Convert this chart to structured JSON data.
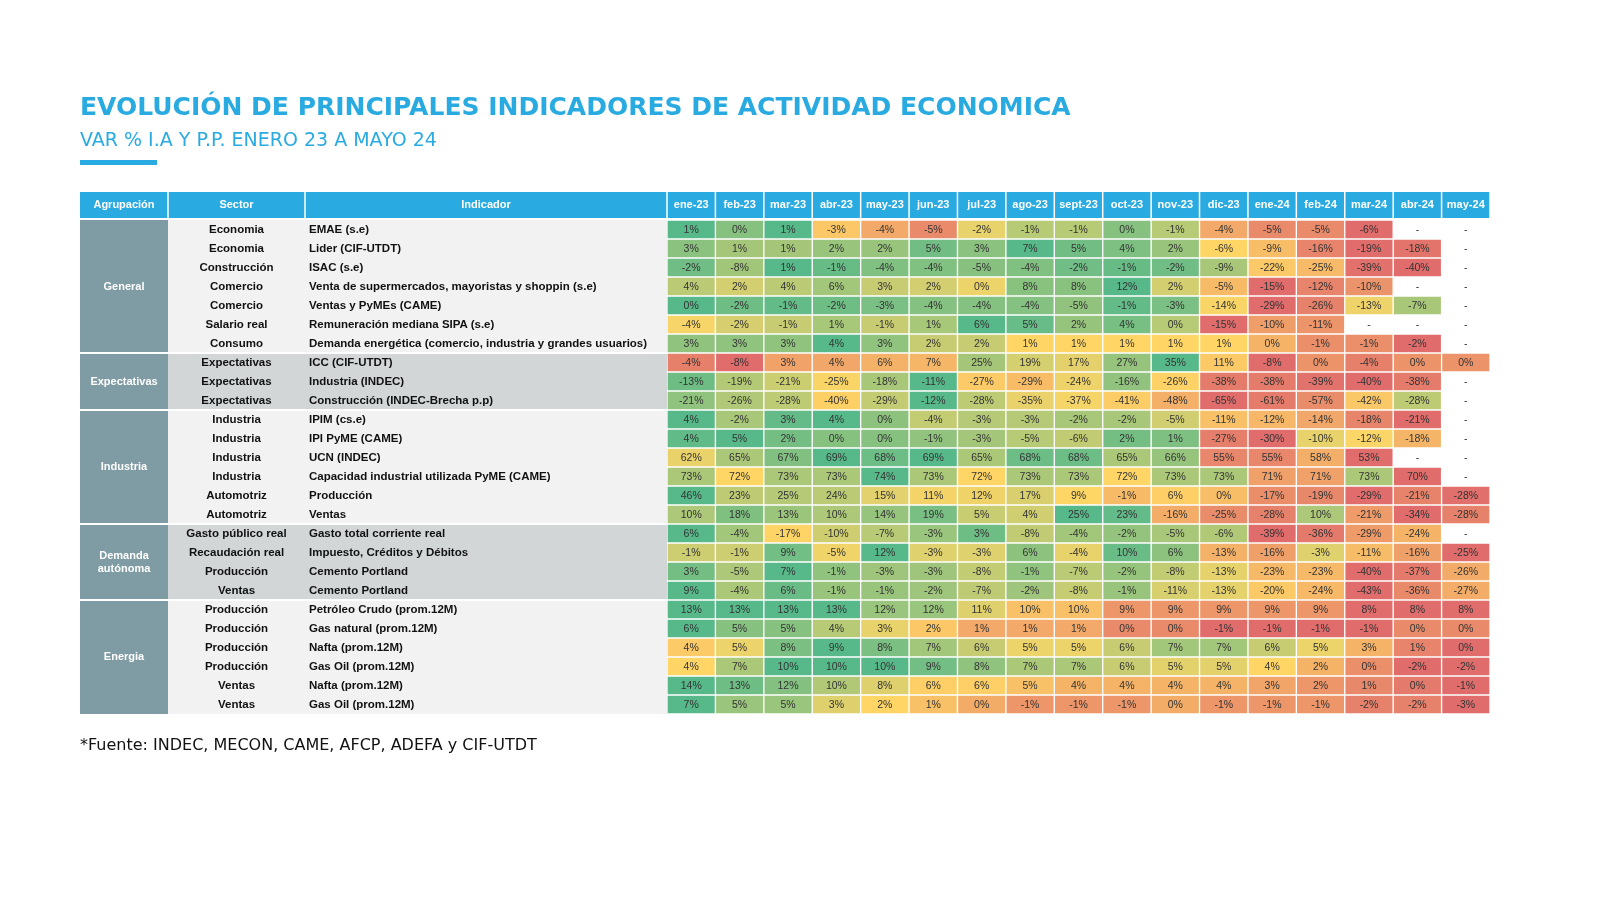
{
  "chart_data": {
    "type": "heatmap",
    "title": "EVOLUCIÓN DE PRINCIPALES INDICADORES DE ACTIVIDAD ECONOMICA",
    "subtitle": "VAR % I.A Y P.P. ENERO 23 A MAYO 24",
    "ylabel": "Indicador",
    "categories": [
      "ene-23",
      "feb-23",
      "mar-23",
      "abr-23",
      "may-23",
      "jun-23",
      "jul-23",
      "ago-23",
      "sept-23",
      "oct-23",
      "nov-23",
      "dic-23",
      "ene-24",
      "feb-24",
      "mar-24",
      "abr-24",
      "may-24"
    ],
    "y_categories": [
      "EMAE (s.e)",
      "Lider (CIF-UTDT)",
      "ISAC (s.e)",
      "Venta de supermercados, mayoristas y shoppin (s.e)",
      "Ventas y PyMEs (CAME)",
      "Remuneración mediana SIPA (s.e)",
      "Demanda energética (comercio, industria y grandes usuarios)",
      "ICC (CIF-UTDT)",
      "Industria (INDEC)",
      "Construcción (INDEC-Brecha p.p)",
      "IPIM (cs.e)",
      "IPI PyME (CAME)",
      "UCN (INDEC)",
      "Capacidad industrial utilizada PyME (CAME)",
      "Producción",
      "Ventas",
      "Gasto total corriente real",
      "Impuesto, Créditos y Débitos",
      "Cemento Portland",
      "Cemento Portland",
      "Petróleo Crudo (prom.12M)",
      "Gas natural (prom.12M)",
      "Nafta (prom.12M)",
      "Gas Oil (prom.12M)",
      "Nafta (prom.12M)",
      "Gas Oil (prom.12M)"
    ],
    "y2_categories": [
      "Economia",
      "Economia",
      "Construcción",
      "Comercio",
      "Comercio",
      "Salario real",
      "Consumo",
      "Expectativas",
      "Expectativas",
      "Expectativas",
      "Industria",
      "Industria",
      "Industria",
      "Industria",
      "Automotriz",
      "Automotriz",
      "Gasto público real",
      "Recaudación real",
      "Producción",
      "Ventas",
      "Producción",
      "Producción",
      "Producción",
      "Producción",
      "Ventas",
      "Ventas"
    ],
    "cells": [
      [
        1,
        0,
        1,
        -3,
        -4,
        -5,
        -2,
        -1,
        -1,
        0,
        -1,
        -4,
        -5,
        -5,
        -6,
        null,
        null
      ],
      [
        3,
        1,
        1,
        2,
        2,
        5,
        3,
        7,
        5,
        4,
        2,
        -6,
        -9,
        -16,
        -19,
        -18,
        null
      ],
      [
        -2,
        -8,
        1,
        -1,
        -4,
        -4,
        -5,
        -4,
        -2,
        -1,
        -2,
        -9,
        -22,
        -25,
        -39,
        -40,
        null
      ],
      [
        4,
        2,
        4,
        6,
        3,
        2,
        0,
        8,
        8,
        12,
        2,
        -5,
        -15,
        -12,
        -10,
        null,
        null
      ],
      [
        0,
        -2,
        -1,
        -2,
        -3,
        -4,
        -4,
        -4,
        -5,
        -1,
        -3,
        -14,
        -29,
        -26,
        -13,
        -7,
        null
      ],
      [
        -4,
        -2,
        -1,
        1,
        -1,
        1,
        6,
        5,
        2,
        4,
        0,
        -15,
        -10,
        -11,
        null,
        null,
        null
      ],
      [
        3,
        3,
        3,
        4,
        3,
        2,
        2,
        1,
        1,
        1,
        1,
        1,
        0,
        -1,
        -1,
        -2,
        null
      ],
      [
        -4,
        -8,
        3,
        4,
        6,
        7,
        25,
        19,
        17,
        27,
        35,
        11,
        -8,
        0,
        -4,
        0,
        0
      ],
      [
        -13,
        -19,
        -21,
        -25,
        -18,
        -11,
        -27,
        -29,
        -24,
        -16,
        -26,
        -38,
        -38,
        -39,
        -40,
        -38,
        null
      ],
      [
        -21,
        -26,
        -28,
        -40,
        -29,
        -12,
        -28,
        -35,
        -37,
        -41,
        -48,
        -65,
        -61,
        -57,
        -42,
        -28,
        null
      ],
      [
        4,
        -2,
        3,
        4,
        0,
        -4,
        -3,
        -3,
        -2,
        -2,
        -5,
        -11,
        -12,
        -14,
        -18,
        -21,
        null
      ],
      [
        4,
        5,
        2,
        0,
        0,
        -1,
        -3,
        -5,
        -6,
        2,
        1,
        -27,
        -30,
        -10,
        -12,
        -18,
        null
      ],
      [
        62,
        65,
        67,
        69,
        68,
        69,
        65,
        68,
        68,
        65,
        66,
        55,
        55,
        58,
        53,
        null,
        null
      ],
      [
        73,
        72,
        73,
        73,
        74,
        73,
        72,
        73,
        73,
        72,
        73,
        73,
        71,
        71,
        73,
        70,
        null
      ],
      [
        46,
        23,
        25,
        24,
        15,
        11,
        12,
        17,
        9,
        -1,
        6,
        0,
        -17,
        -19,
        -29,
        -21,
        -28
      ],
      [
        10,
        18,
        13,
        10,
        14,
        19,
        5,
        4,
        25,
        23,
        -16,
        -25,
        -28,
        10,
        -21,
        -34,
        -28
      ],
      [
        6,
        -4,
        -17,
        -10,
        -7,
        -3,
        3,
        -8,
        -4,
        -2,
        -5,
        -6,
        -39,
        -36,
        -29,
        -24,
        null
      ],
      [
        -1,
        -1,
        9,
        -5,
        12,
        -3,
        -3,
        6,
        -4,
        10,
        6,
        -13,
        -16,
        -3,
        -11,
        -16,
        -25
      ],
      [
        3,
        -5,
        7,
        -1,
        -3,
        -3,
        -8,
        -1,
        -7,
        -2,
        -8,
        -13,
        -23,
        -23,
        -40,
        -37,
        -26
      ],
      [
        9,
        -4,
        6,
        -1,
        -1,
        -2,
        -7,
        -2,
        -8,
        -1,
        -11,
        -13,
        -20,
        -24,
        -43,
        -36,
        -27
      ],
      [
        13,
        13,
        13,
        13,
        12,
        12,
        11,
        10,
        10,
        9,
        9,
        9,
        9,
        9,
        8,
        8,
        8
      ],
      [
        6,
        5,
        5,
        4,
        3,
        2,
        1,
        1,
        1,
        0,
        0,
        -1,
        -1,
        -1,
        -1,
        0,
        0
      ],
      [
        4,
        5,
        8,
        9,
        8,
        7,
        6,
        5,
        5,
        6,
        7,
        7,
        6,
        5,
        3,
        1,
        0
      ],
      [
        4,
        7,
        10,
        10,
        10,
        9,
        8,
        7,
        7,
        6,
        5,
        5,
        4,
        2,
        0,
        -2,
        -2
      ],
      [
        14,
        13,
        12,
        10,
        8,
        6,
        6,
        5,
        4,
        4,
        4,
        4,
        3,
        2,
        1,
        0,
        -1
      ],
      [
        7,
        5,
        5,
        3,
        2,
        1,
        0,
        -1,
        -1,
        -1,
        0,
        -1,
        -1,
        -1,
        -2,
        -2,
        -3
      ]
    ],
    "cell_labels": [
      [
        "1%",
        "0%",
        "1%",
        "-3%",
        "-4%",
        "-5%",
        "-2%",
        "-1%",
        "-1%",
        "0%",
        "-1%",
        "-4%",
        "-5%",
        "-5%",
        "-6%",
        "-",
        "-"
      ],
      [
        "3%",
        "1%",
        "1%",
        "2%",
        "2%",
        "5%",
        "3%",
        "7%",
        "5%",
        "4%",
        "2%",
        "-6%",
        "-9%",
        "-16%",
        "-19%",
        "-18%",
        "-"
      ],
      [
        "-2%",
        "-8%",
        "1%",
        "-1%",
        "-4%",
        "-4%",
        "-5%",
        "-4%",
        "-2%",
        "-1%",
        "-2%",
        "-9%",
        "-22%",
        "-25%",
        "-39%",
        "-40%",
        "-"
      ],
      [
        "4%",
        "2%",
        "4%",
        "6%",
        "3%",
        "2%",
        "0%",
        "8%",
        "8%",
        "12%",
        "2%",
        "-5%",
        "-15%",
        "-12%",
        "-10%",
        "-",
        "-"
      ],
      [
        "0%",
        "-2%",
        "-1%",
        "-2%",
        "-3%",
        "-4%",
        "-4%",
        "-4%",
        "-5%",
        "-1%",
        "-3%",
        "-14%",
        "-29%",
        "-26%",
        "-13%",
        "-7%",
        "-"
      ],
      [
        "-4%",
        "-2%",
        "-1%",
        "1%",
        "-1%",
        "1%",
        "6%",
        "5%",
        "2%",
        "4%",
        "0%",
        "-15%",
        "-10%",
        "-11%",
        "-",
        "-",
        "-"
      ],
      [
        "3%",
        "3%",
        "3%",
        "4%",
        "3%",
        "2%",
        "2%",
        "1%",
        "1%",
        "1%",
        "1%",
        "1%",
        "0%",
        "-1%",
        "-1%",
        "-2%",
        "-"
      ],
      [
        "-4%",
        "-8%",
        "3%",
        "4%",
        "6%",
        "7%",
        "25%",
        "19%",
        "17%",
        "27%",
        "35%",
        "11%",
        "-8%",
        "0%",
        "-4%",
        "0%",
        "0%"
      ],
      [
        "-13%",
        "-19%",
        "-21%",
        "-25%",
        "-18%",
        "-11%",
        "-27%",
        "-29%",
        "-24%",
        "-16%",
        "-26%",
        "-38%",
        "-38%",
        "-39%",
        "-40%",
        "-38%",
        "-"
      ],
      [
        "-21%",
        "-26%",
        "-28%",
        "-40%",
        "-29%",
        "-12%",
        "-28%",
        "-35%",
        "-37%",
        "-41%",
        "-48%",
        "-65%",
        "-61%",
        "-57%",
        "-42%",
        "-28%",
        "-"
      ],
      [
        "4%",
        "-2%",
        "3%",
        "4%",
        "0%",
        "-4%",
        "-3%",
        "-3%",
        "-2%",
        "-2%",
        "-5%",
        "-11%",
        "-12%",
        "-14%",
        "-18%",
        "-21%",
        "-"
      ],
      [
        "4%",
        "5%",
        "2%",
        "0%",
        "0%",
        "-1%",
        "-3%",
        "-5%",
        "-6%",
        "2%",
        "1%",
        "-27%",
        "-30%",
        "-10%",
        "-12%",
        "-18%",
        "-"
      ],
      [
        "62%",
        "65%",
        "67%",
        "69%",
        "68%",
        "69%",
        "65%",
        "68%",
        "68%",
        "65%",
        "66%",
        "55%",
        "55%",
        "58%",
        "53%",
        "-",
        "-"
      ],
      [
        "73%",
        "72%",
        "73%",
        "73%",
        "74%",
        "73%",
        "72%",
        "73%",
        "73%",
        "72%",
        "73%",
        "73%",
        "71%",
        "71%",
        "73%",
        "70%",
        "-"
      ],
      [
        "46%",
        "23%",
        "25%",
        "24%",
        "15%",
        "11%",
        "12%",
        "17%",
        "9%",
        "-1%",
        "6%",
        "0%",
        "-17%",
        "-19%",
        "-29%",
        "-21%",
        "-28%"
      ],
      [
        "10%",
        "18%",
        "13%",
        "10%",
        "14%",
        "19%",
        "5%",
        "4%",
        "25%",
        "23%",
        "-16%",
        "-25%",
        "-28%",
        "10%",
        "-21%",
        "-34%",
        "-28%"
      ],
      [
        "6%",
        "-4%",
        "-17%",
        "-10%",
        "-7%",
        "-3%",
        "3%",
        "-8%",
        "-4%",
        "-2%",
        "-5%",
        "-6%",
        "-39%",
        "-36%",
        "-29%",
        "-24%",
        "-"
      ],
      [
        "-1%",
        "-1%",
        "9%",
        "-5%",
        "12%",
        "-3%",
        "-3%",
        "6%",
        "-4%",
        "10%",
        "6%",
        "-13%",
        "-16%",
        "-3%",
        "-11%",
        "-16%",
        "-25%"
      ],
      [
        "3%",
        "-5%",
        "7%",
        "-1%",
        "-3%",
        "-3%",
        "-8%",
        "-1%",
        "-7%",
        "-2%",
        "-8%",
        "-13%",
        "-23%",
        "-23%",
        "-40%",
        "-37%",
        "-26%"
      ],
      [
        "9%",
        "-4%",
        "6%",
        "-1%",
        "-1%",
        "-2%",
        "-7%",
        "-2%",
        "-8%",
        "-1%",
        "-11%",
        "-13%",
        "-20%",
        "-24%",
        "-43%",
        "-36%",
        "-27%"
      ],
      [
        "13%",
        "13%",
        "13%",
        "13%",
        "12%",
        "12%",
        "11%",
        "10%",
        "10%",
        "9%",
        "9%",
        "9%",
        "9%",
        "9%",
        "8%",
        "8%",
        "8%"
      ],
      [
        "6%",
        "5%",
        "5%",
        "4%",
        "3%",
        "2%",
        "1%",
        "1%",
        "1%",
        "0%",
        "0%",
        "-1%",
        "-1%",
        "-1%",
        "-1%",
        "0%",
        "0%"
      ],
      [
        "4%",
        "5%",
        "8%",
        "9%",
        "8%",
        "7%",
        "6%",
        "5%",
        "5%",
        "6%",
        "7%",
        "7%",
        "6%",
        "5%",
        "3%",
        "1%",
        "0%"
      ],
      [
        "4%",
        "7%",
        "10%",
        "10%",
        "10%",
        "9%",
        "8%",
        "7%",
        "7%",
        "6%",
        "5%",
        "5%",
        "4%",
        "2%",
        "0%",
        "-2%",
        "-2%"
      ],
      [
        "14%",
        "13%",
        "12%",
        "10%",
        "8%",
        "6%",
        "6%",
        "5%",
        "4%",
        "4%",
        "4%",
        "4%",
        "3%",
        "2%",
        "1%",
        "0%",
        "-1%"
      ],
      [
        "7%",
        "5%",
        "5%",
        "3%",
        "2%",
        "1%",
        "0%",
        "-1%",
        "-1%",
        "-1%",
        "0%",
        "-1%",
        "-1%",
        "-1%",
        "-2%",
        "-2%",
        "-3%"
      ]
    ],
    "annotations": [
      "Agrupación",
      "Sector",
      "General",
      "Expectativas",
      "Industria",
      "Demanda autónoma",
      "Energia",
      "*Fuente: INDEC, MECON, CAME, AFCP, ADEFA y CIF-UTDT"
    ]
  }
}
